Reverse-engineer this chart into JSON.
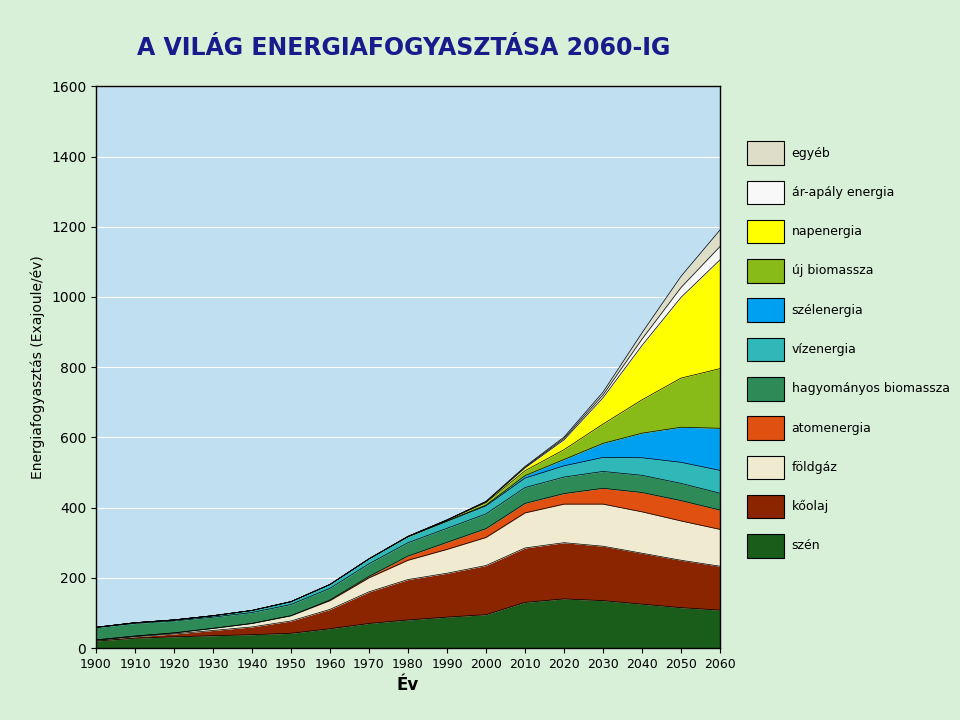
{
  "title": "A VILÁG ENERGIAFOGYASZTÁSA 2060-IG",
  "xlabel": "Év",
  "ylabel": "Energiafogyasztás (Exajoule/év)",
  "years": [
    1900,
    1910,
    1920,
    1930,
    1940,
    1950,
    1960,
    1970,
    1980,
    1990,
    2000,
    2010,
    2020,
    2030,
    2040,
    2050,
    2060
  ],
  "ylim": [
    0,
    1600
  ],
  "background_color": "#d8f0d8",
  "plot_bg_color": "#c0dff0",
  "legend_bg_color": "#b0d8e8",
  "series": {
    "szén": {
      "color": "#1a5c1a",
      "values": [
        20,
        28,
        32,
        35,
        38,
        42,
        55,
        70,
        80,
        88,
        95,
        130,
        140,
        135,
        125,
        115,
        108
      ]
    },
    "kőolaj": {
      "color": "#8b2500",
      "values": [
        2,
        4,
        8,
        15,
        22,
        35,
        55,
        90,
        115,
        125,
        140,
        155,
        160,
        155,
        145,
        135,
        125
      ]
    },
    "földgáz": {
      "color": "#f0ead0",
      "values": [
        1,
        2,
        3,
        6,
        10,
        15,
        25,
        40,
        55,
        68,
        80,
        100,
        110,
        120,
        118,
        112,
        105
      ]
    },
    "atomenergia": {
      "color": "#e05010",
      "values": [
        0,
        0,
        0,
        0,
        0,
        0,
        2,
        4,
        12,
        20,
        25,
        27,
        30,
        45,
        55,
        58,
        55
      ]
    },
    "hagyományos biomassza": {
      "color": "#2e8b57",
      "values": [
        35,
        36,
        34,
        32,
        31,
        32,
        33,
        36,
        38,
        40,
        42,
        45,
        47,
        48,
        49,
        49,
        48
      ]
    },
    "vízenergia": {
      "color": "#30b8b8",
      "values": [
        1,
        2,
        3,
        4,
        6,
        8,
        11,
        14,
        17,
        20,
        23,
        27,
        32,
        40,
        50,
        60,
        65
      ]
    },
    "szélenergia": {
      "color": "#00a0f0",
      "values": [
        0,
        0,
        0,
        0,
        0,
        0,
        0,
        0,
        0,
        1,
        2,
        7,
        18,
        40,
        70,
        100,
        120
      ]
    },
    "új biomassza": {
      "color": "#88bb18",
      "values": [
        0,
        0,
        0,
        0,
        0,
        0,
        0,
        0,
        1,
        2,
        7,
        14,
        28,
        55,
        95,
        140,
        170
      ]
    },
    "napenergia": {
      "color": "#ffff00",
      "values": [
        0,
        0,
        0,
        0,
        0,
        0,
        0,
        0,
        0,
        1,
        2,
        8,
        28,
        75,
        155,
        230,
        310
      ]
    },
    "ár-apály energia": {
      "color": "#f8f8f8",
      "values": [
        0,
        0,
        0,
        0,
        0,
        0,
        0,
        0,
        0,
        0,
        1,
        2,
        4,
        8,
        18,
        28,
        38
      ]
    },
    "egyéb": {
      "color": "#ddddc8",
      "values": [
        0,
        0,
        0,
        0,
        0,
        0,
        0,
        0,
        0,
        0,
        1,
        2,
        4,
        8,
        18,
        32,
        47
      ]
    }
  },
  "series_order": [
    "szén",
    "kőolaj",
    "földgáz",
    "atomenergia",
    "hagyományos biomassza",
    "vízenergia",
    "szélenergia",
    "új biomassza",
    "napenergia",
    "ár-apály energia",
    "egyéb"
  ],
  "legend_order": [
    "egyéb",
    "ár-apály energia",
    "napenergia",
    "új biomassza",
    "szélenergia",
    "vízenergia",
    "hagyományos biomassza",
    "atomenergia",
    "földgáz",
    "kőolaj",
    "szén"
  ]
}
